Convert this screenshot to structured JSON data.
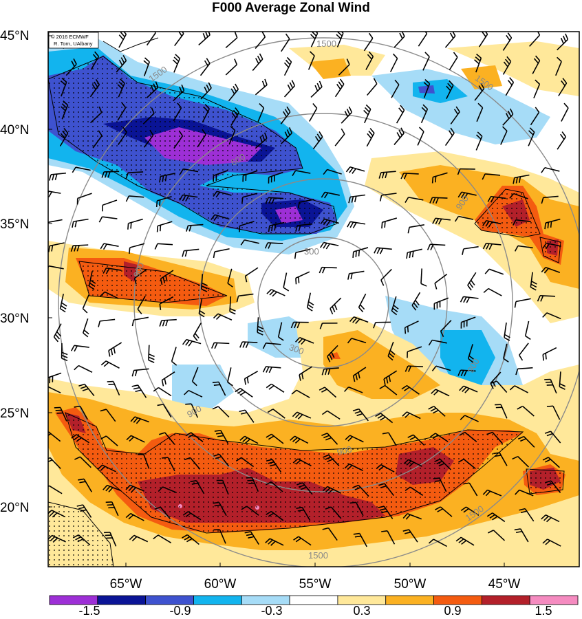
{
  "title": "F000 Average Zonal Wind",
  "credit": {
    "line1": "© 2016 ECMWF",
    "line2": "R. Torn, UAlbany"
  },
  "axes": {
    "lat_labels": [
      "45°N",
      "40°N",
      "35°N",
      "30°N",
      "25°N",
      "20°N"
    ],
    "lon_labels": [
      "65°W",
      "60°W",
      "55°W",
      "50°W",
      "45°W"
    ]
  },
  "colorbar": {
    "labels": [
      "-1.5",
      "-0.9",
      "-0.3",
      "0.3",
      "0.9",
      "1.5"
    ],
    "colors": [
      "#9d2fd6",
      "#0a1496",
      "#3e52cf",
      "#12b4ee",
      "#a6dcf7",
      "#ffffff",
      "#ffe89a",
      "#fbb122",
      "#f45b10",
      "#b3202a",
      "#f58bc0"
    ]
  },
  "contour_labels": [
    "1500",
    "1500",
    "1500",
    "900",
    "900",
    "900",
    "900",
    "900",
    "600",
    "300",
    "300",
    "1500",
    "1500"
  ],
  "map_colors": {
    "border": "#000000",
    "contour": "#8a8a8a",
    "barb": "#000000"
  },
  "icons": [
    "wind-barb-icon",
    "stipple-pattern-icon"
  ]
}
